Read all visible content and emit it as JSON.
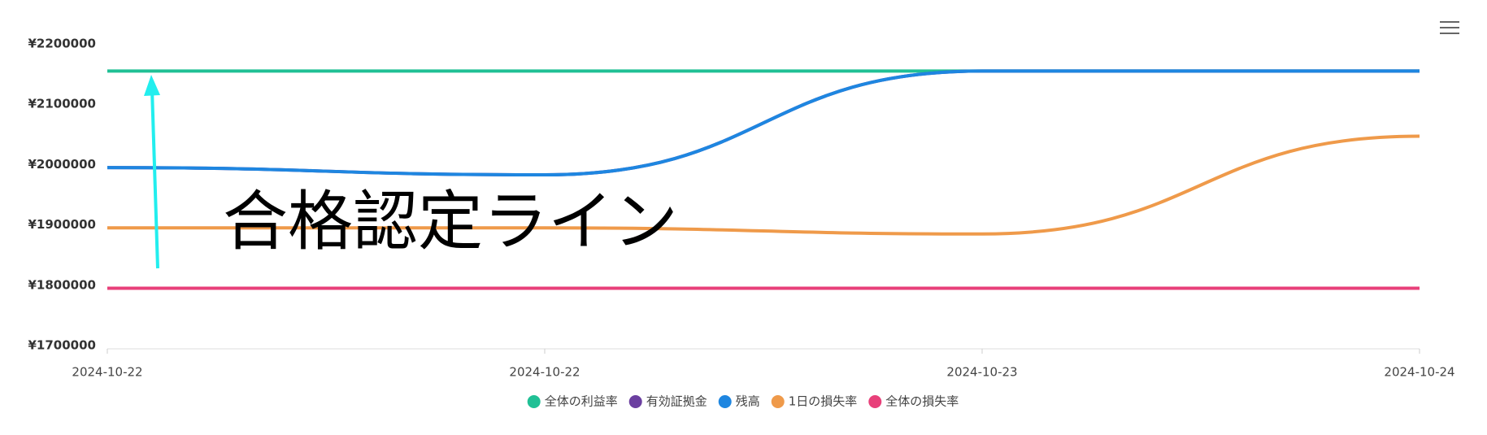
{
  "chart_data": {
    "type": "line",
    "categories": [
      "2024-10-22",
      "2024-10-22",
      "2024-10-23",
      "2024-10-24"
    ],
    "series": [
      {
        "name": "全体の利益率",
        "color": "#20c095",
        "values": [
          2155000,
          2155000,
          2155000,
          2155000
        ]
      },
      {
        "name": "有効証拠金",
        "color": "#6b3fa0",
        "values": [
          1995000,
          1983000,
          2155000,
          2155000
        ]
      },
      {
        "name": "残高",
        "color": "#1e86e0",
        "values": [
          1995000,
          1983000,
          2155000,
          2155000
        ]
      },
      {
        "name": "1日の損失率",
        "color": "#ef9a4a",
        "values": [
          1895000,
          1895000,
          1885000,
          2047000
        ]
      },
      {
        "name": "全体の損失率",
        "color": "#e8407a",
        "values": [
          1795000,
          1795000,
          1795000,
          1795000
        ]
      }
    ],
    "ylim": [
      1700000,
      2200000
    ],
    "yticks": [
      {
        "value": 1700000,
        "label": "¥1700000"
      },
      {
        "value": 1800000,
        "label": "¥1800000"
      },
      {
        "value": 1900000,
        "label": "¥1900000"
      },
      {
        "value": 2000000,
        "label": "¥2000000"
      },
      {
        "value": 2100000,
        "label": "¥2100000"
      },
      {
        "value": 2200000,
        "label": "¥2200000"
      }
    ],
    "annotation": "合格認定ライン"
  }
}
